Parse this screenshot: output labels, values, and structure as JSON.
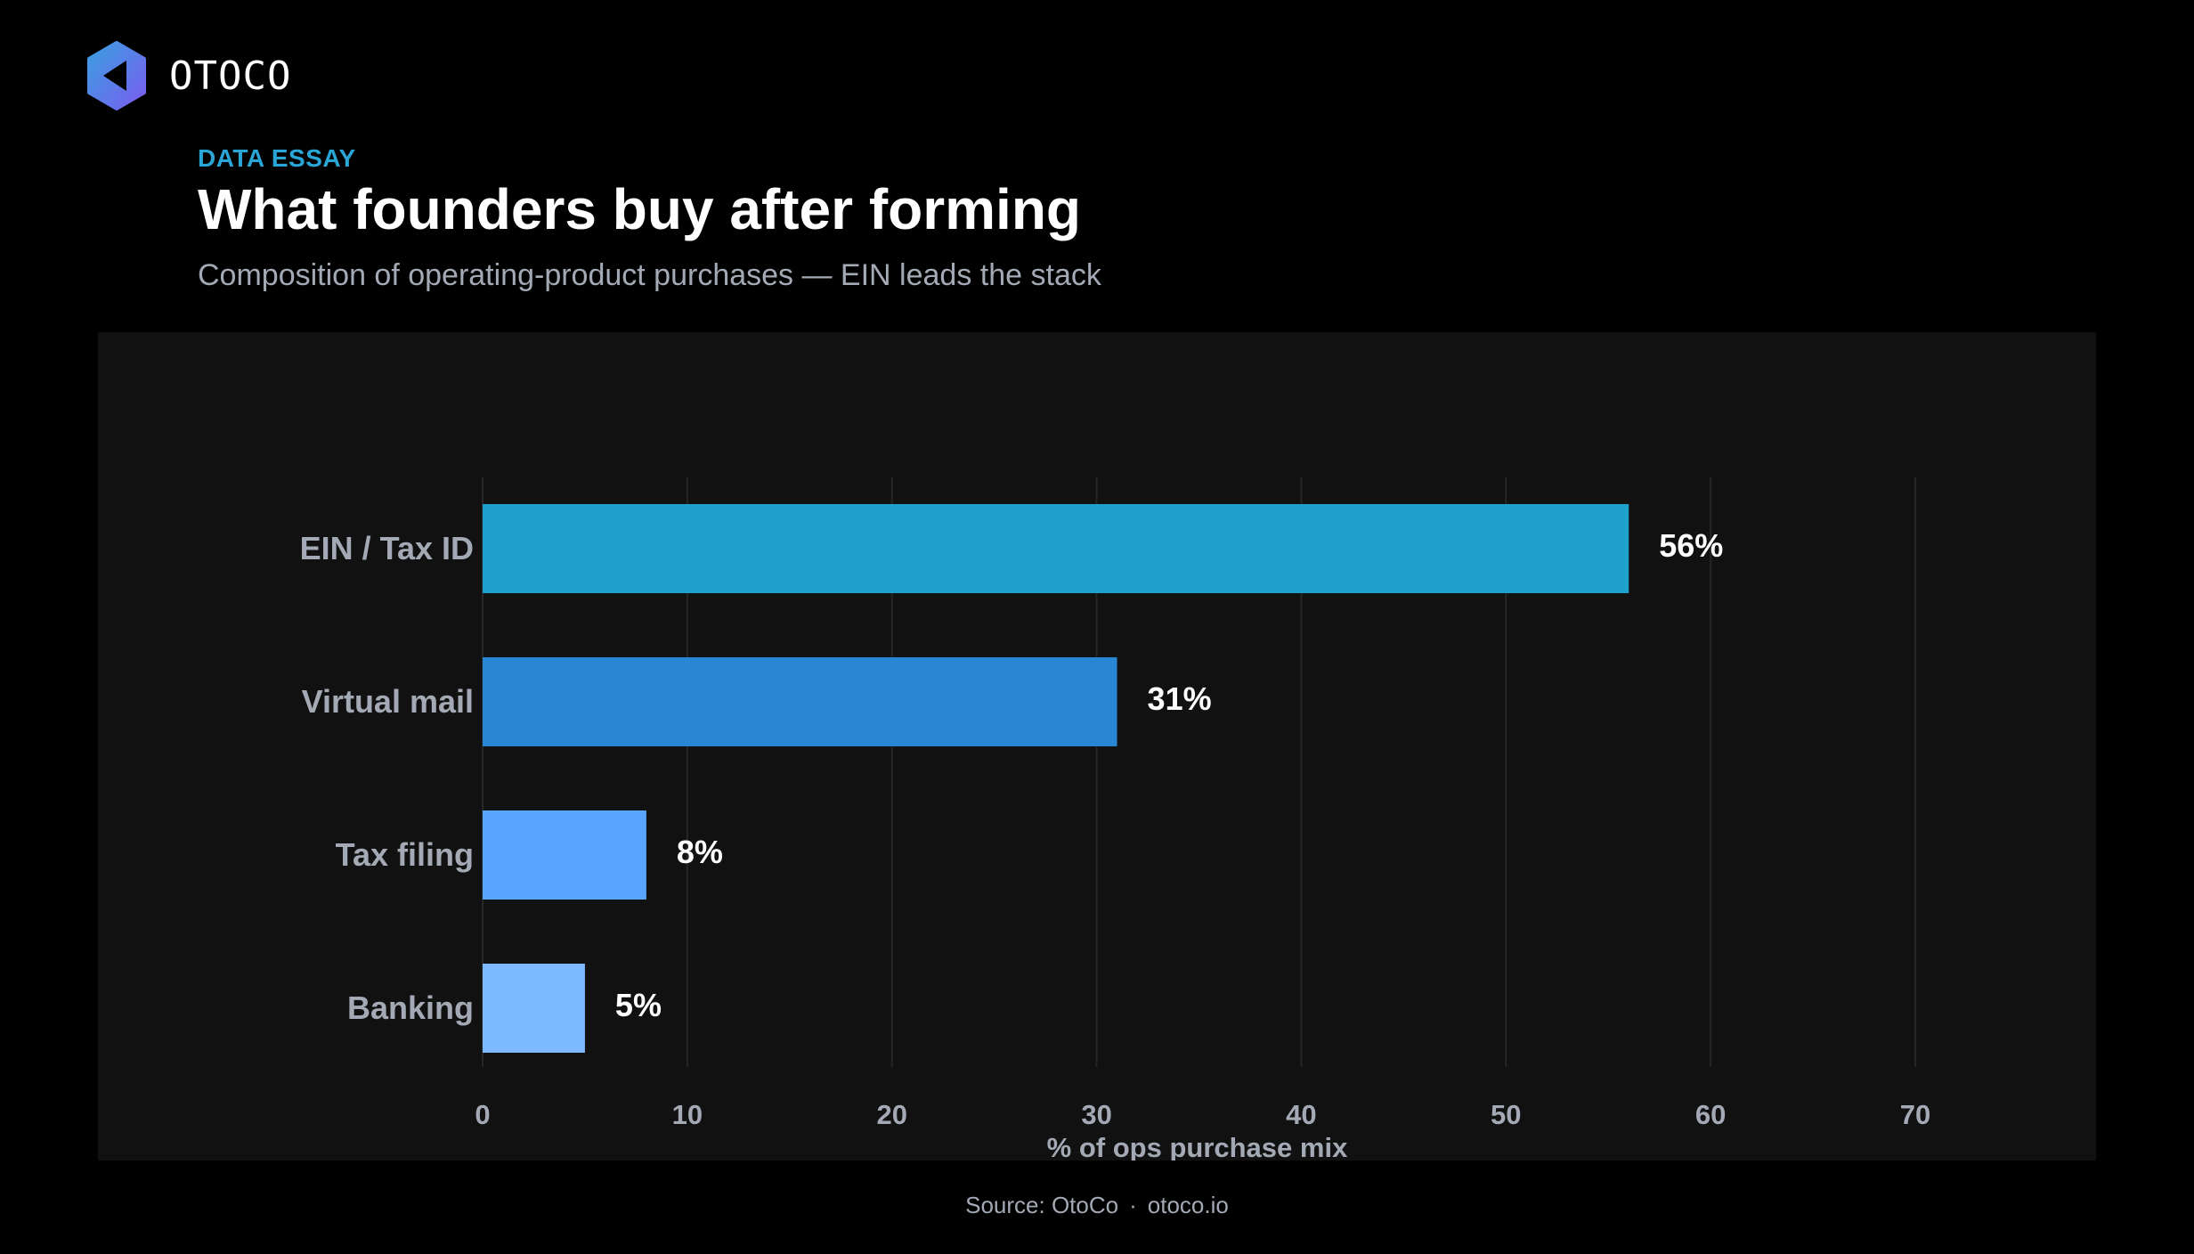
{
  "brand": {
    "name": "OTOCO",
    "colors": {
      "mark_start": "#3aa0e0",
      "mark_end": "#7a5cf0"
    }
  },
  "header": {
    "kicker": "DATA ESSAY",
    "title": "What founders buy after forming",
    "subtitle": "Composition of operating-product purchases — EIN leads the stack"
  },
  "chart_data": {
    "type": "bar",
    "orientation": "horizontal",
    "categories": [
      "EIN / Tax ID",
      "Virtual mail",
      "Tax filing",
      "Banking"
    ],
    "values": [
      56,
      31,
      8,
      5
    ],
    "value_labels": [
      "56%",
      "31%",
      "8%",
      "5%"
    ],
    "colors": [
      "#1ea2cd",
      "#2986d4",
      "#58a6ff",
      "#7db9ff"
    ],
    "xlabel": "% of ops purchase mix",
    "xlim": [
      0,
      70
    ],
    "xticks": [
      "0",
      "10",
      "20",
      "30",
      "40",
      "50",
      "60",
      "70"
    ],
    "grid": "vertical"
  },
  "footer": {
    "source": "Source: OtoCo",
    "separator": "·",
    "site": "otoco.io"
  }
}
